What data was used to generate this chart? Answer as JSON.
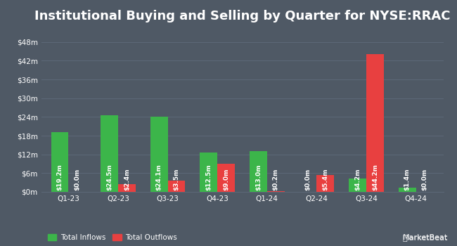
{
  "title": "Institutional Buying and Selling by Quarter for NYSE:RRAC",
  "quarters": [
    "Q1-23",
    "Q2-23",
    "Q3-23",
    "Q4-23",
    "Q1-24",
    "Q2-24",
    "Q3-24",
    "Q4-24"
  ],
  "inflows": [
    19.2,
    24.5,
    24.1,
    12.5,
    13.0,
    0.0,
    4.2,
    1.4
  ],
  "outflows": [
    0.0,
    2.4,
    3.5,
    9.0,
    0.2,
    5.4,
    44.2,
    0.0
  ],
  "inflow_labels": [
    "$19.2m",
    "$24.5m",
    "$24.1m",
    "$12.5m",
    "$13.0m",
    "$0.0m",
    "$4.2m",
    "$1.4m"
  ],
  "outflow_labels": [
    "$0.0m",
    "$2.4m",
    "$3.5m",
    "$9.0m",
    "$0.2m",
    "$5.4m",
    "$44.2m",
    "$0.0m"
  ],
  "inflow_color": "#3cb54a",
  "outflow_color": "#e84040",
  "background_color": "#4f5965",
  "grid_color": "#5d6978",
  "text_color": "#ffffff",
  "bar_width": 0.35,
  "ylim": [
    0,
    52
  ],
  "yticks": [
    0,
    6,
    12,
    18,
    24,
    30,
    36,
    42,
    48
  ],
  "ytick_labels": [
    "$0m",
    "$6m",
    "$12m",
    "$18m",
    "$24m",
    "$30m",
    "$36m",
    "$42m",
    "$48m"
  ],
  "legend_inflow": "Total Inflows",
  "legend_outflow": "Total Outflows",
  "title_fontsize": 13,
  "label_fontsize": 6.5,
  "tick_fontsize": 7.5,
  "legend_fontsize": 7.5
}
